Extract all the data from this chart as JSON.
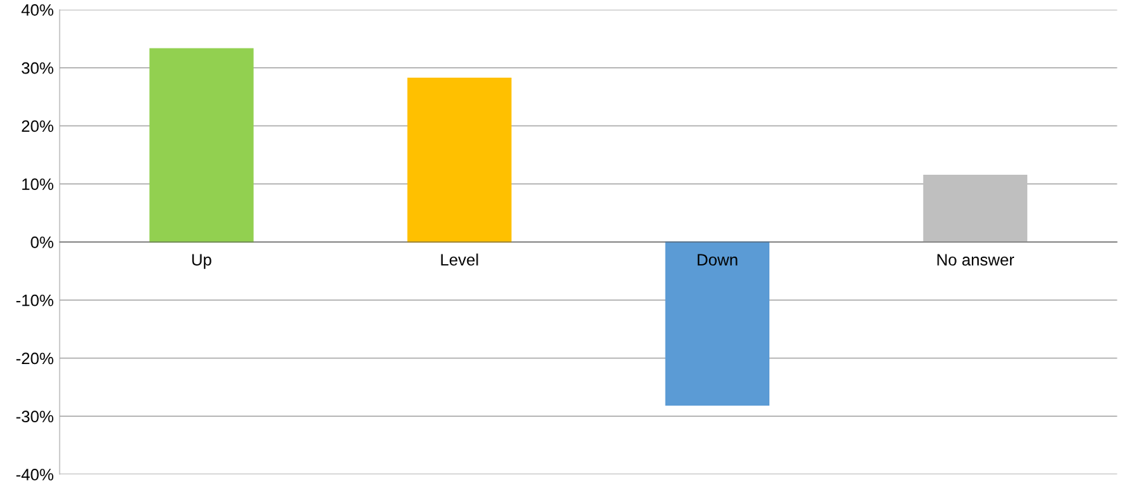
{
  "chart_data": {
    "type": "bar",
    "categories": [
      "Up",
      "Level",
      "Down",
      "No answer"
    ],
    "values": [
      33.3,
      28.2,
      -28.1,
      11.5
    ],
    "colors": [
      "#92d050",
      "#ffc000",
      "#5b9bd5",
      "#bfbfbf"
    ],
    "ylim": [
      -40,
      40
    ],
    "yticks": [
      {
        "value": -40,
        "label": "-40%"
      },
      {
        "value": -30,
        "label": "-30%"
      },
      {
        "value": -20,
        "label": "-20%"
      },
      {
        "value": -10,
        "label": "-10%"
      },
      {
        "value": 0,
        "label": "0%"
      },
      {
        "value": 10,
        "label": "10%"
      },
      {
        "value": 20,
        "label": "20%"
      },
      {
        "value": 30,
        "label": "30%"
      },
      {
        "value": 40,
        "label": "40%"
      }
    ],
    "grid": "y",
    "legend": false
  }
}
